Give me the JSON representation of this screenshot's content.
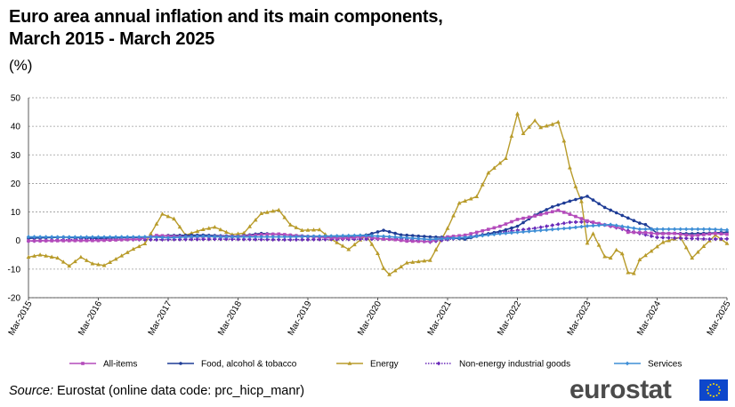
{
  "header": {
    "title_line1": "Euro area annual inflation and its main components,",
    "title_line2": "March 2015 - March 2025",
    "unit": "(%)"
  },
  "footer": {
    "source_label": "Source:",
    "source_text": " Eurostat (online data code: prc_hicp_manr)",
    "logo_text": "eurostat"
  },
  "colors": {
    "all_items": "#b44bbb",
    "food": "#1f3d96",
    "energy": "#b89b2a",
    "non_energy": "#6a2ab9",
    "services": "#3f8fd6",
    "flag": "#0e47cb",
    "flag_stars": "#ffdd00"
  },
  "chart_data": {
    "type": "line",
    "ylim": [
      -20,
      50
    ],
    "yticks": [
      -20,
      -10,
      0,
      10,
      20,
      30,
      40,
      50
    ],
    "grid": true,
    "legend_position": "bottom",
    "x_tick_labels": [
      "Mar-2015",
      "Mar-2016",
      "Mar-2017",
      "Mar-2018",
      "Mar-2019",
      "Mar-2020",
      "Mar-2021",
      "Mar-2022",
      "Mar-2023",
      "Mar-2024",
      "Mar-2025"
    ],
    "x_start": "Mar-2015",
    "x_end": "Mar-2025",
    "series": [
      {
        "key": "all_items",
        "name": "All-items",
        "marker": "square",
        "dashed": false,
        "anchors": [
          [
            "Mar-2015",
            -0.1
          ],
          [
            "Mar-2016",
            0.0
          ],
          [
            "Oct-2016",
            0.5
          ],
          [
            "Jan-2017",
            1.8
          ],
          [
            "Jun-2017",
            1.3
          ],
          [
            "Dec-2017",
            1.4
          ],
          [
            "Mar-2018",
            1.4
          ],
          [
            "Jul-2018",
            2.1
          ],
          [
            "Oct-2018",
            2.3
          ],
          [
            "Feb-2019",
            1.5
          ],
          [
            "Sep-2019",
            0.8
          ],
          [
            "Jan-2020",
            1.4
          ],
          [
            "Mar-2020",
            0.7
          ],
          [
            "Jun-2020",
            0.3
          ],
          [
            "Aug-2020",
            -0.2
          ],
          [
            "Dec-2020",
            -0.3
          ],
          [
            "Mar-2021",
            1.3
          ],
          [
            "Jun-2021",
            1.9
          ],
          [
            "Sep-2021",
            3.4
          ],
          [
            "Dec-2021",
            5.0
          ],
          [
            "Mar-2022",
            7.4
          ],
          [
            "Jun-2022",
            8.6
          ],
          [
            "Oct-2022",
            10.6
          ],
          [
            "Dec-2022",
            9.2
          ],
          [
            "Mar-2023",
            6.9
          ],
          [
            "Jun-2023",
            5.5
          ],
          [
            "Sep-2023",
            4.3
          ],
          [
            "Oct-2023",
            2.9
          ],
          [
            "Jan-2024",
            2.8
          ],
          [
            "Mar-2024",
            2.4
          ],
          [
            "Jun-2024",
            2.5
          ],
          [
            "Sep-2024",
            1.7
          ],
          [
            "Jan-2025",
            2.5
          ],
          [
            "Mar-2025",
            2.2
          ]
        ]
      },
      {
        "key": "food",
        "name": "Food, alcohol & tobacco",
        "marker": "circle",
        "dashed": false,
        "anchors": [
          [
            "Mar-2015",
            0.8
          ],
          [
            "Sep-2015",
            1.2
          ],
          [
            "Mar-2016",
            0.8
          ],
          [
            "Dec-2016",
            1.2
          ],
          [
            "Mar-2017",
            1.8
          ],
          [
            "Sep-2017",
            1.9
          ],
          [
            "Mar-2018",
            1.5
          ],
          [
            "Jul-2018",
            2.5
          ],
          [
            "Dec-2018",
            1.9
          ],
          [
            "Mar-2019",
            1.5
          ],
          [
            "Oct-2019",
            1.5
          ],
          [
            "Jan-2020",
            1.9
          ],
          [
            "Apr-2020",
            3.6
          ],
          [
            "Jul-2020",
            2.0
          ],
          [
            "Dec-2020",
            1.3
          ],
          [
            "Mar-2021",
            1.1
          ],
          [
            "Jun-2021",
            0.5
          ],
          [
            "Sep-2021",
            2.0
          ],
          [
            "Dec-2021",
            3.2
          ],
          [
            "Mar-2022",
            5.0
          ],
          [
            "Jun-2022",
            8.9
          ],
          [
            "Sep-2022",
            11.8
          ],
          [
            "Dec-2022",
            13.8
          ],
          [
            "Mar-2023",
            15.5
          ],
          [
            "Jun-2023",
            11.6
          ],
          [
            "Sep-2023",
            8.8
          ],
          [
            "Dec-2023",
            6.1
          ],
          [
            "Jan-2024",
            5.6
          ],
          [
            "Mar-2024",
            2.6
          ],
          [
            "Jun-2024",
            2.5
          ],
          [
            "Sep-2024",
            2.4
          ],
          [
            "Dec-2024",
            2.6
          ],
          [
            "Mar-2025",
            2.9
          ]
        ]
      },
      {
        "key": "energy",
        "name": "Energy",
        "marker": "triangle",
        "dashed": false,
        "anchors": [
          [
            "Mar-2015",
            -5.8
          ],
          [
            "May-2015",
            -5.0
          ],
          [
            "Aug-2015",
            -6.1
          ],
          [
            "Oct-2015",
            -8.9
          ],
          [
            "Dec-2015",
            -5.8
          ],
          [
            "Feb-2016",
            -8.1
          ],
          [
            "Apr-2016",
            -8.7
          ],
          [
            "Jun-2016",
            -6.5
          ],
          [
            "Sep-2016",
            -3.0
          ],
          [
            "Nov-2016",
            -1.1
          ],
          [
            "Feb-2017",
            9.3
          ],
          [
            "Apr-2017",
            7.6
          ],
          [
            "Jun-2017",
            1.9
          ],
          [
            "Sep-2017",
            3.9
          ],
          [
            "Nov-2017",
            4.7
          ],
          [
            "Feb-2018",
            2.1
          ],
          [
            "Apr-2018",
            2.6
          ],
          [
            "Jul-2018",
            9.5
          ],
          [
            "Oct-2018",
            10.7
          ],
          [
            "Dec-2018",
            5.5
          ],
          [
            "Feb-2019",
            3.6
          ],
          [
            "May-2019",
            3.8
          ],
          [
            "Jul-2019",
            0.5
          ],
          [
            "Oct-2019",
            -3.1
          ],
          [
            "Jan-2020",
            1.9
          ],
          [
            "Mar-2020",
            -4.5
          ],
          [
            "Apr-2020",
            -9.7
          ],
          [
            "May-2020",
            -11.9
          ],
          [
            "Aug-2020",
            -7.8
          ],
          [
            "Dec-2020",
            -6.9
          ],
          [
            "Mar-2021",
            4.3
          ],
          [
            "May-2021",
            13.1
          ],
          [
            "Aug-2021",
            15.4
          ],
          [
            "Oct-2021",
            23.7
          ],
          [
            "Jan-2022",
            28.8
          ],
          [
            "Mar-2022",
            44.4
          ],
          [
            "Apr-2022",
            37.5
          ],
          [
            "Jun-2022",
            42.0
          ],
          [
            "Jul-2022",
            39.6
          ],
          [
            "Sep-2022",
            40.7
          ],
          [
            "Oct-2022",
            41.5
          ],
          [
            "Nov-2022",
            34.9
          ],
          [
            "Dec-2022",
            25.5
          ],
          [
            "Jan-2023",
            18.9
          ],
          [
            "Feb-2023",
            13.7
          ],
          [
            "Mar-2023",
            -0.9
          ],
          [
            "Apr-2023",
            2.4
          ],
          [
            "Jun-2023",
            -5.6
          ],
          [
            "Jul-2023",
            -6.1
          ],
          [
            "Aug-2023",
            -3.3
          ],
          [
            "Sep-2023",
            -4.6
          ],
          [
            "Oct-2023",
            -11.2
          ],
          [
            "Nov-2023",
            -11.5
          ],
          [
            "Dec-2023",
            -6.7
          ],
          [
            "Feb-2024",
            -3.7
          ],
          [
            "Apr-2024",
            -0.6
          ],
          [
            "Jul-2024",
            1.2
          ],
          [
            "Sep-2024",
            -6.1
          ],
          [
            "Nov-2024",
            -2.0
          ],
          [
            "Jan-2025",
            1.9
          ],
          [
            "Mar-2025",
            -1.0
          ]
        ]
      },
      {
        "key": "non_energy",
        "name": "Non-energy industrial goods",
        "marker": "diamond",
        "dashed": true,
        "anchors": [
          [
            "Mar-2015",
            -0.2
          ],
          [
            "Dec-2015",
            0.5
          ],
          [
            "Dec-2016",
            0.3
          ],
          [
            "Dec-2017",
            0.5
          ],
          [
            "Dec-2018",
            0.3
          ],
          [
            "Dec-2019",
            0.5
          ],
          [
            "Jul-2020",
            0.6
          ],
          [
            "Dec-2020",
            -0.5
          ],
          [
            "Jun-2021",
            1.2
          ],
          [
            "Dec-2021",
            2.9
          ],
          [
            "Jun-2022",
            4.3
          ],
          [
            "Dec-2022",
            6.4
          ],
          [
            "Mar-2023",
            6.6
          ],
          [
            "Jun-2023",
            5.5
          ],
          [
            "Dec-2023",
            2.5
          ],
          [
            "Mar-2024",
            1.1
          ],
          [
            "Dec-2024",
            0.5
          ],
          [
            "Mar-2025",
            0.6
          ]
        ]
      },
      {
        "key": "services",
        "name": "Services",
        "marker": "diamond",
        "dashed": false,
        "anchors": [
          [
            "Mar-2015",
            1.3
          ],
          [
            "Dec-2015",
            1.2
          ],
          [
            "Dec-2016",
            1.3
          ],
          [
            "Mar-2017",
            1.0
          ],
          [
            "Sep-2017",
            1.5
          ],
          [
            "Dec-2017",
            1.3
          ],
          [
            "Dec-2018",
            1.3
          ],
          [
            "Dec-2019",
            1.8
          ],
          [
            "Apr-2020",
            1.5
          ],
          [
            "Dec-2020",
            0.4
          ],
          [
            "Jun-2021",
            1.1
          ],
          [
            "Dec-2021",
            2.4
          ],
          [
            "Jun-2022",
            3.4
          ],
          [
            "Dec-2022",
            4.4
          ],
          [
            "Mar-2023",
            5.1
          ],
          [
            "Jul-2023",
            5.6
          ],
          [
            "Dec-2023",
            4.0
          ],
          [
            "Mar-2024",
            4.0
          ],
          [
            "Dec-2024",
            4.0
          ],
          [
            "Mar-2025",
            3.7
          ]
        ]
      }
    ]
  }
}
